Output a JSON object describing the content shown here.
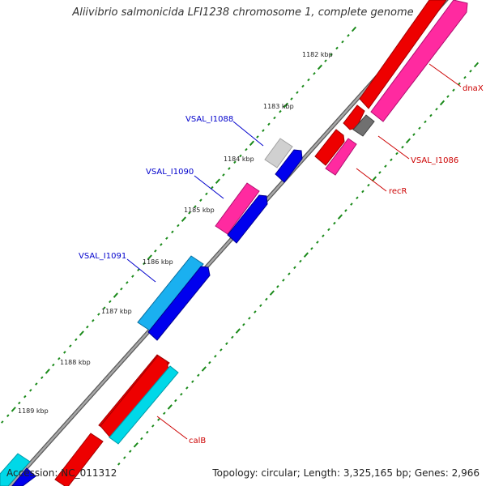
{
  "title": "Aliivibrio salmonicida LFI1238 chromosome 1, complete genome",
  "footer": {
    "accession": "Accession: NC_011312",
    "summary": "Topology: circular; Length: 3,325,165 bp; Genes: 2,966"
  },
  "colors": {
    "backbone": "#8c8c8c",
    "tick": "#1a8a1a",
    "label_blue": "#0000cc",
    "label_red": "#cc0000",
    "red": "#ee0000",
    "pink": "#ff2aa0",
    "blue": "#0000ee",
    "cyan": "#00d8e8",
    "skyblue": "#1ab0f0",
    "gray": "#707070",
    "lightgray": "#d0d0d0"
  },
  "kbp_labels": [
    "1182 kbp",
    "1183 kbp",
    "1184 kbp",
    "1185 kbp",
    "1186 kbp",
    "1187 kbp",
    "1188 kbp",
    "1189 kbp"
  ],
  "gene_labels": [
    {
      "id": "VSAL_I1088",
      "text": "VSAL_I1088",
      "color": "blue"
    },
    {
      "id": "VSAL_I1090",
      "text": "VSAL_I1090",
      "color": "blue"
    },
    {
      "id": "VSAL_I1091",
      "text": "VSAL_I1091",
      "color": "blue"
    },
    {
      "id": "dnaX",
      "text": "dnaX",
      "color": "red"
    },
    {
      "id": "VSAL_I1086",
      "text": "VSAL_I1086",
      "color": "red"
    },
    {
      "id": "recR",
      "text": "recR",
      "color": "red"
    },
    {
      "id": "calB",
      "text": "calB",
      "color": "red"
    }
  ]
}
